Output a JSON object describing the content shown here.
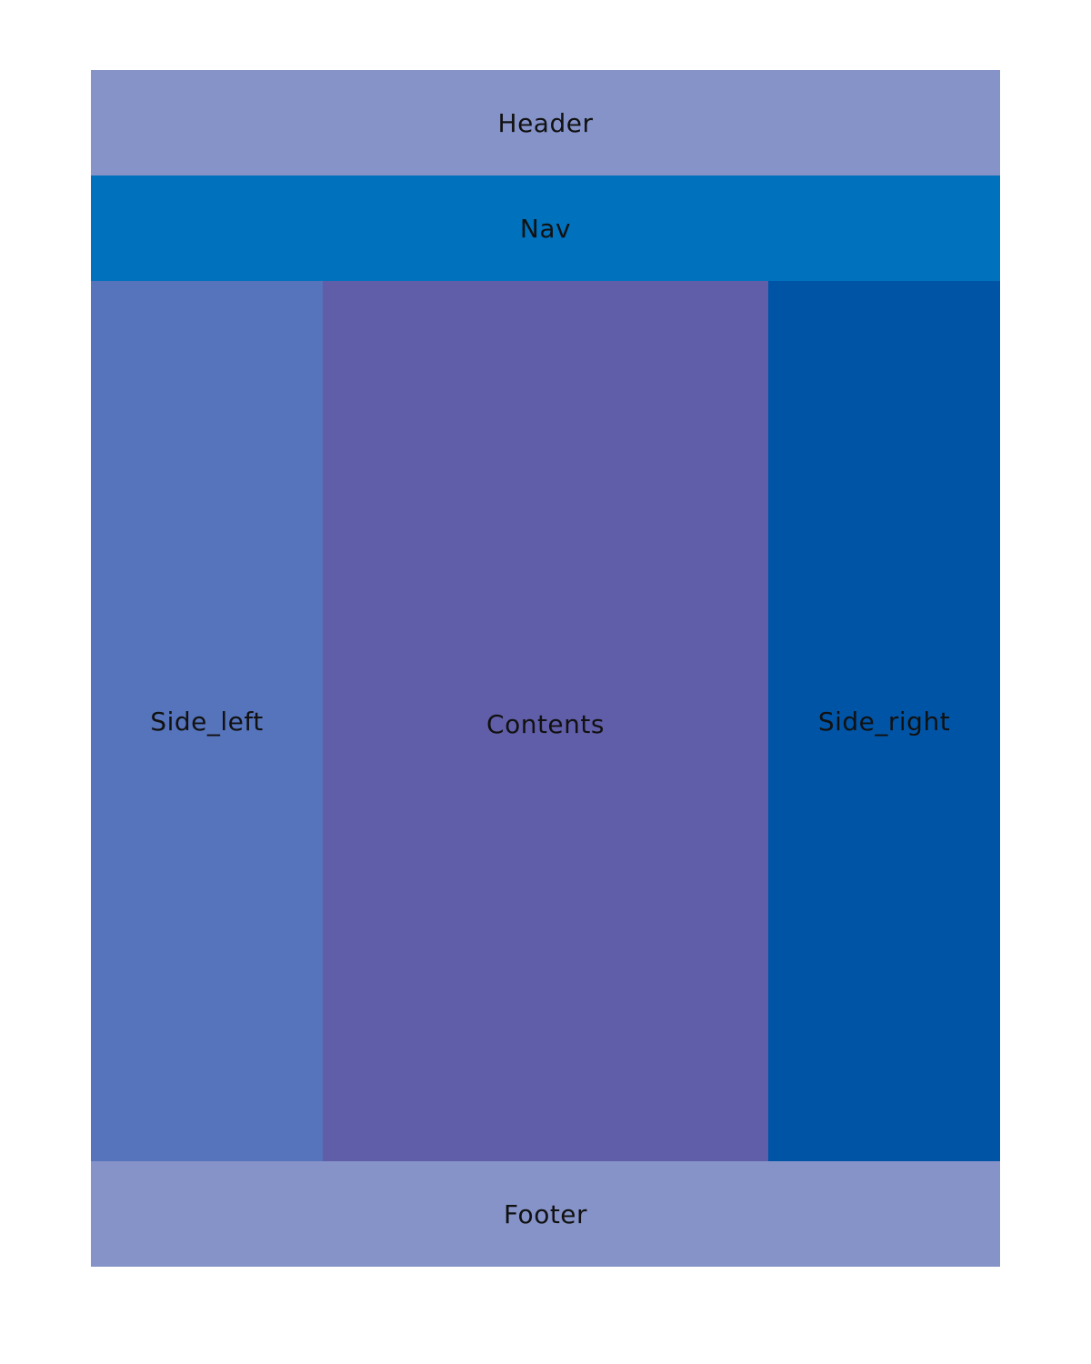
{
  "colors": {
    "header": "#8593c8",
    "nav": "#0071bc",
    "side_left": "#5674bb",
    "contents": "#615ea9",
    "side_right": "#0054a6",
    "footer": "#8593c8",
    "text": "#111111"
  },
  "header": {
    "label": "Header"
  },
  "nav": {
    "label": "Nav"
  },
  "side_left": {
    "label": "Side_left"
  },
  "contents": {
    "label": "Contents"
  },
  "side_right": {
    "label": "Side_right"
  },
  "footer": {
    "label": "Footer"
  }
}
